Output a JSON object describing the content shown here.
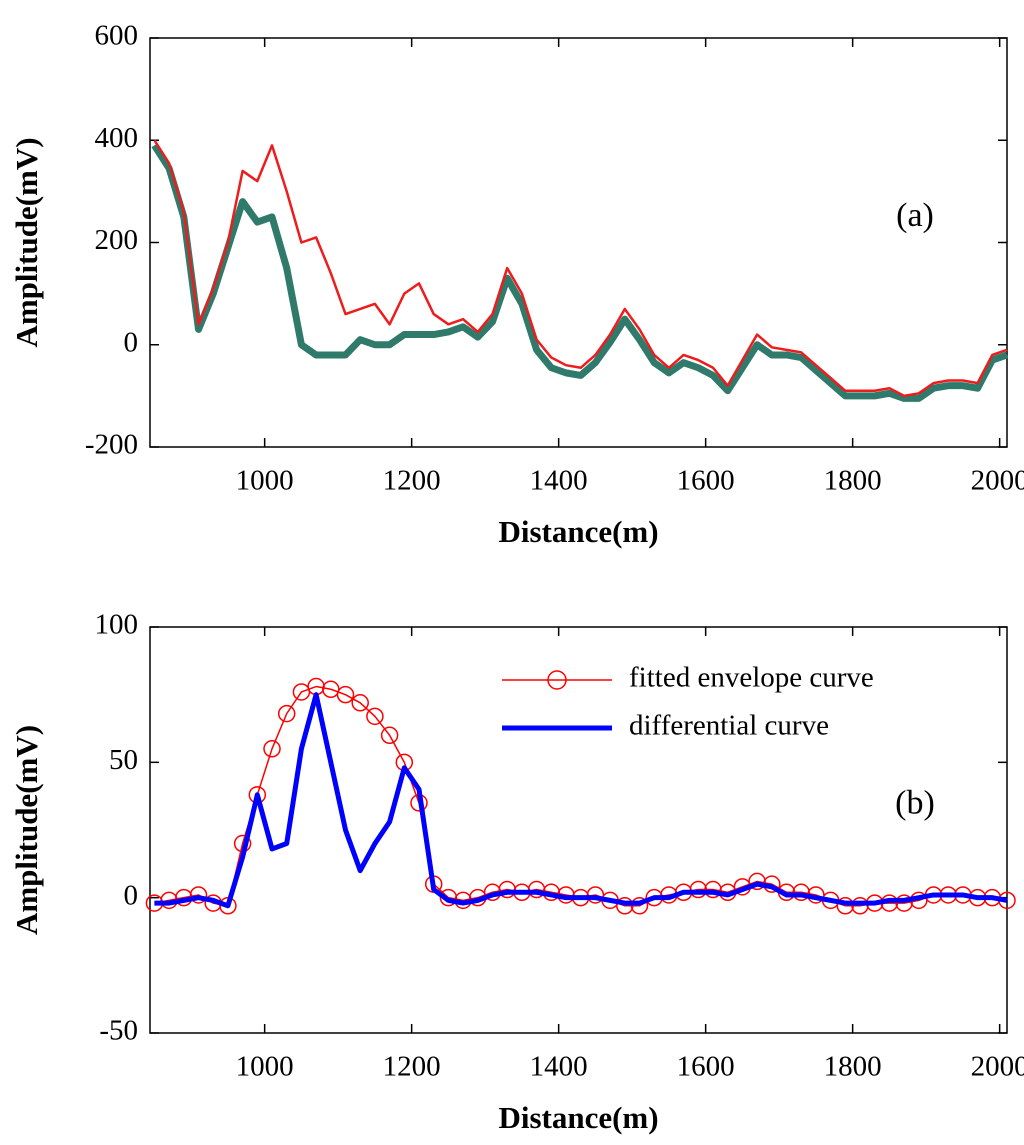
{
  "chart_data": [
    {
      "type": "line",
      "annotation": "(a)",
      "xlabel": "Distance(m)",
      "ylabel": "Amplitude(mV)",
      "xlim": [
        844,
        2010
      ],
      "xticks": [
        1000,
        1200,
        1400,
        1600,
        1800,
        2000
      ],
      "ylim": [
        -200,
        600
      ],
      "yticks": [
        -200,
        0,
        200,
        400,
        600
      ],
      "x": [
        850,
        870,
        890,
        910,
        930,
        950,
        970,
        990,
        1010,
        1030,
        1050,
        1070,
        1090,
        1110,
        1130,
        1150,
        1170,
        1190,
        1210,
        1230,
        1250,
        1270,
        1290,
        1310,
        1330,
        1350,
        1370,
        1390,
        1410,
        1430,
        1450,
        1470,
        1490,
        1510,
        1530,
        1550,
        1570,
        1590,
        1610,
        1630,
        1650,
        1670,
        1690,
        1710,
        1730,
        1750,
        1770,
        1790,
        1810,
        1830,
        1850,
        1870,
        1890,
        1910,
        1930,
        1950,
        1970,
        1990,
        2010
      ],
      "series": [
        {
          "color": "#2f7a6a",
          "width": 7,
          "values": [
            390,
            345,
            250,
            30,
            100,
            190,
            280,
            240,
            250,
            150,
            0,
            -20,
            -20,
            -20,
            10,
            0,
            0,
            20,
            20,
            20,
            25,
            35,
            15,
            45,
            130,
            80,
            -10,
            -45,
            -55,
            -60,
            -35,
            5,
            50,
            10,
            -35,
            -55,
            -35,
            -45,
            -60,
            -90,
            -45,
            0,
            -20,
            -20,
            -25,
            -50,
            -75,
            -100,
            -100,
            -100,
            -95,
            -105,
            -105,
            -85,
            -80,
            -80,
            -85,
            -30,
            -20
          ]
        },
        {
          "color": "#ee1c1c",
          "width": 2.5,
          "values": [
            400,
            355,
            260,
            40,
            110,
            200,
            340,
            320,
            390,
            300,
            200,
            210,
            140,
            60,
            70,
            80,
            40,
            100,
            120,
            60,
            40,
            50,
            25,
            60,
            150,
            100,
            10,
            -25,
            -40,
            -45,
            -20,
            20,
            70,
            30,
            -20,
            -45,
            -20,
            -30,
            -45,
            -80,
            -30,
            20,
            -5,
            -10,
            -15,
            -40,
            -65,
            -90,
            -90,
            -90,
            -85,
            -100,
            -95,
            -75,
            -70,
            -70,
            -75,
            -20,
            -10
          ]
        }
      ]
    },
    {
      "type": "line",
      "annotation": "(b)",
      "xlabel": "Distance(m)",
      "ylabel": "Amplitude(mV)",
      "xlim": [
        844,
        2010
      ],
      "xticks": [
        1000,
        1200,
        1400,
        1600,
        1800,
        2000
      ],
      "ylim": [
        -50,
        100
      ],
      "yticks": [
        -50,
        0,
        50,
        100
      ],
      "legend": "upper right",
      "x": [
        850,
        870,
        890,
        910,
        930,
        950,
        970,
        990,
        1010,
        1030,
        1050,
        1070,
        1090,
        1110,
        1130,
        1150,
        1170,
        1190,
        1210,
        1230,
        1250,
        1270,
        1290,
        1310,
        1330,
        1350,
        1370,
        1390,
        1410,
        1430,
        1450,
        1470,
        1490,
        1510,
        1530,
        1550,
        1570,
        1590,
        1610,
        1630,
        1650,
        1670,
        1690,
        1710,
        1730,
        1750,
        1770,
        1790,
        1810,
        1830,
        1850,
        1870,
        1890,
        1910,
        1930,
        1950,
        1970,
        1990,
        2010
      ],
      "series": [
        {
          "name": "fitted envelope curve",
          "color": "#ff0000",
          "marker": "circle",
          "width": 1.5,
          "values": [
            -2,
            -1,
            0,
            1,
            -2,
            -3,
            20,
            38,
            55,
            68,
            76,
            78,
            77,
            75,
            72,
            67,
            60,
            50,
            35,
            5,
            0,
            -1,
            0,
            2,
            3,
            2,
            3,
            2,
            1,
            0,
            1,
            -1,
            -3,
            -3,
            0,
            1,
            2,
            3,
            3,
            2,
            4,
            6,
            5,
            2,
            2,
            1,
            -1,
            -3,
            -3,
            -2,
            -2,
            -2,
            -1,
            1,
            1,
            1,
            0,
            0,
            -1
          ]
        },
        {
          "name": "differential curve",
          "color": "#0000ff",
          "width": 5,
          "values": [
            -2,
            -2,
            -1,
            0,
            -1,
            -3,
            15,
            38,
            18,
            20,
            55,
            75,
            50,
            25,
            10,
            20,
            28,
            48,
            40,
            3,
            -1,
            -2,
            -1,
            1,
            2,
            2,
            2,
            1,
            0,
            0,
            0,
            -1,
            -2,
            -2,
            0,
            0,
            2,
            2,
            2,
            1,
            3,
            5,
            4,
            1,
            1,
            0,
            -1,
            -2,
            -2,
            -2,
            -1,
            -1,
            0,
            1,
            1,
            1,
            0,
            0,
            -1
          ]
        }
      ]
    }
  ]
}
